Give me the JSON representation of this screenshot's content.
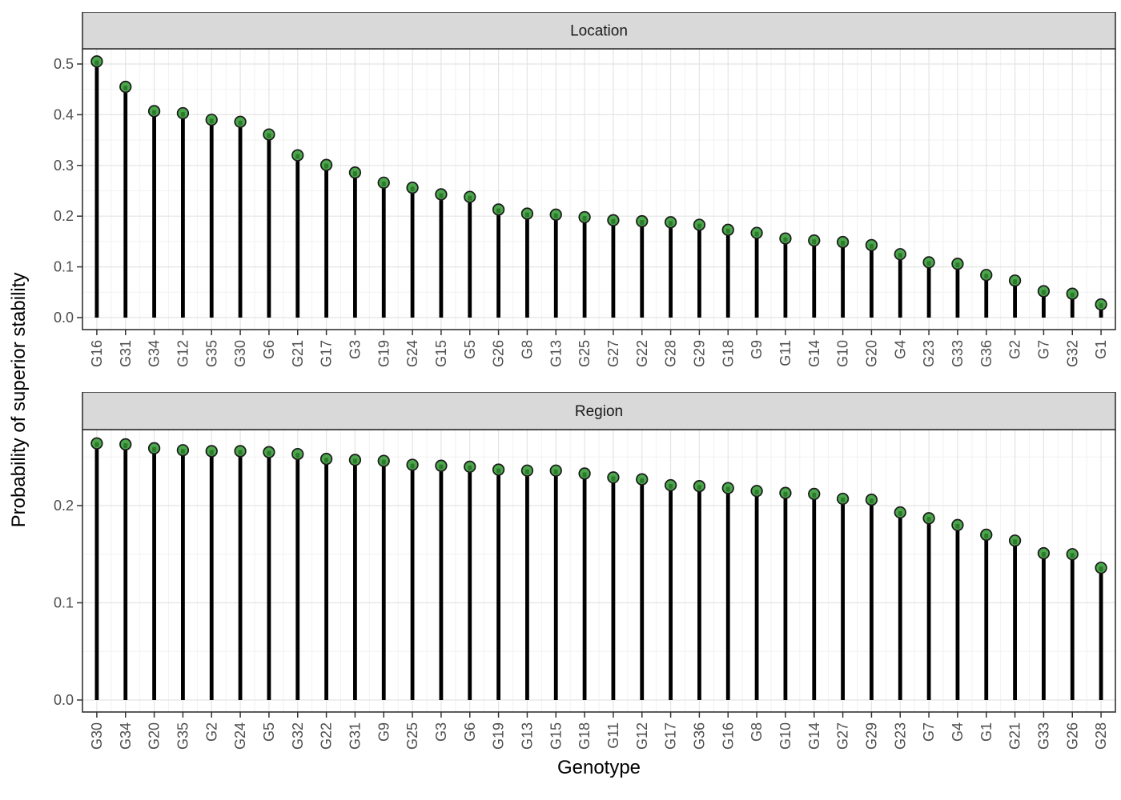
{
  "figure": {
    "y_axis_title": "Probability of superior stability",
    "x_axis_title": "Genotype",
    "background": "#FFFFFF",
    "colors": {
      "stem": "#000000",
      "point_fill": "#4CA64C",
      "point_inner": "#2C7A2C",
      "point_stroke": "#1A1A1A",
      "strip_fill": "#D9D9D9",
      "strip_text": "#1A1A1A",
      "panel_border": "#333333",
      "grid_major": "#E4E4E4",
      "grid_minor": "#F2F2F2",
      "tick_mark": "#333333",
      "tick_label": "#4D4D4D",
      "axis_title": "#000000"
    }
  },
  "chart_data": [
    {
      "type": "lollipop",
      "facet": "Location",
      "xlabel": "Genotype",
      "ylabel": "Probability of superior stability",
      "ylim": [
        0,
        0.53
      ],
      "yticks": [
        0.0,
        0.1,
        0.2,
        0.3,
        0.4,
        0.5
      ],
      "grid": "on",
      "legend": "none",
      "categories": [
        "G16",
        "G31",
        "G34",
        "G12",
        "G35",
        "G30",
        "G6",
        "G21",
        "G17",
        "G3",
        "G19",
        "G24",
        "G15",
        "G5",
        "G26",
        "G8",
        "G13",
        "G25",
        "G27",
        "G22",
        "G28",
        "G29",
        "G18",
        "G9",
        "G11",
        "G14",
        "G10",
        "G20",
        "G4",
        "G23",
        "G33",
        "G36",
        "G2",
        "G7",
        "G32",
        "G1"
      ],
      "values": [
        0.505,
        0.455,
        0.407,
        0.403,
        0.39,
        0.386,
        0.361,
        0.32,
        0.301,
        0.286,
        0.266,
        0.256,
        0.243,
        0.238,
        0.213,
        0.205,
        0.203,
        0.198,
        0.192,
        0.19,
        0.188,
        0.183,
        0.173,
        0.167,
        0.156,
        0.152,
        0.149,
        0.143,
        0.125,
        0.109,
        0.106,
        0.084,
        0.073,
        0.052,
        0.047,
        0.026
      ]
    },
    {
      "type": "lollipop",
      "facet": "Region",
      "xlabel": "Genotype",
      "ylabel": "Probability of superior stability",
      "ylim": [
        0,
        0.28
      ],
      "yticks": [
        0.0,
        0.1,
        0.2
      ],
      "grid": "on",
      "legend": "none",
      "categories": [
        "G30",
        "G34",
        "G20",
        "G35",
        "G2",
        "G24",
        "G5",
        "G32",
        "G22",
        "G31",
        "G9",
        "G25",
        "G3",
        "G6",
        "G19",
        "G13",
        "G15",
        "G18",
        "G11",
        "G12",
        "G17",
        "G36",
        "G16",
        "G8",
        "G10",
        "G14",
        "G27",
        "G29",
        "G23",
        "G7",
        "G4",
        "G1",
        "G21",
        "G33",
        "G26",
        "G28"
      ],
      "values": [
        0.264,
        0.263,
        0.259,
        0.257,
        0.256,
        0.256,
        0.255,
        0.253,
        0.248,
        0.247,
        0.246,
        0.242,
        0.241,
        0.24,
        0.237,
        0.236,
        0.236,
        0.233,
        0.229,
        0.227,
        0.221,
        0.22,
        0.218,
        0.215,
        0.213,
        0.212,
        0.207,
        0.206,
        0.193,
        0.187,
        0.18,
        0.17,
        0.164,
        0.151,
        0.15,
        0.136
      ]
    }
  ]
}
